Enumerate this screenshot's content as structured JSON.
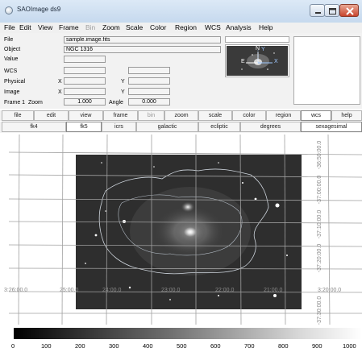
{
  "window": {
    "title": "SAOImage ds9"
  },
  "menubar": [
    "File",
    "Edit",
    "View",
    "Frame",
    "Bin",
    "Zoom",
    "Scale",
    "Color",
    "Region",
    "WCS",
    "Analysis",
    "Help"
  ],
  "info": {
    "file_label": "File",
    "file_value": "sample.image.fits",
    "object_label": "Object",
    "object_value": "NGC 1316",
    "value_label": "Value",
    "wcs_label": "WCS",
    "physical_label": "Physical",
    "image_label": "Image",
    "x_label": "X",
    "y_label": "Y",
    "frame_label": "Frame 1",
    "zoom_label": "Zoom",
    "zoom_value": "1.000",
    "angle_label": "Angle",
    "angle_value": "0.000"
  },
  "panner": {
    "n_label": "N",
    "e_label": "E",
    "x_label": "X",
    "y_label": "Y"
  },
  "buttonbar": [
    "file",
    "edit",
    "view",
    "frame",
    "bin",
    "zoom",
    "scale",
    "color",
    "region",
    "wcs",
    "help"
  ],
  "buttonbar_active": "wcs",
  "subbar": [
    "fk4",
    "fk5",
    "icrs",
    "galactic",
    "ecliptic",
    "degrees",
    "sexagesimal"
  ],
  "subbar_active": [
    "fk5",
    "sexagesimal"
  ],
  "grid_labels": {
    "x": [
      "3:26:00.0",
      "25:00.0",
      "24:00.0",
      "23:00.0",
      "22:00.0",
      "21:00.0",
      "3:20:00.0"
    ],
    "y": [
      "-36:50:00.0",
      "-37:00:00.0",
      "-37:10:00.0",
      "-37:20:00.0",
      "-37:30:00.0"
    ]
  },
  "colorbar": {
    "ticks": [
      "0",
      "100",
      "200",
      "300",
      "400",
      "500",
      "600",
      "700",
      "800",
      "900",
      "1000"
    ]
  },
  "colors": {
    "titlebar": "#c6d9ee",
    "panel": "#f2f2f2",
    "close": "#c8452e"
  }
}
